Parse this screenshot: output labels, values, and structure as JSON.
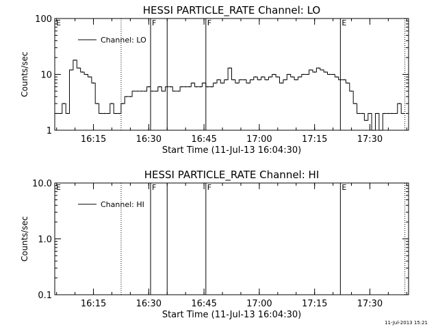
{
  "chart_data": [
    {
      "type": "line",
      "title": "HESSI PARTICLE_RATE Channel: LO",
      "xlabel": "Start Time (11-Jul-13 16:04:30)",
      "ylabel": "Counts/sec",
      "y_scale": "log",
      "ylim": [
        1,
        100
      ],
      "y_ticks": [
        1,
        10,
        100
      ],
      "y_tick_labels": [
        "1",
        "10",
        "100"
      ],
      "xlim": [
        "16:04:30",
        "17:40:30"
      ],
      "x_ticks": [
        "16:15",
        "16:30",
        "16:45",
        "17:00",
        "17:15",
        "17:30"
      ],
      "legend": {
        "position": "top-left",
        "entries": [
          "Channel: LO"
        ]
      },
      "series": [
        {
          "name": "Channel: LO",
          "x": [
            "16:05",
            "16:06",
            "16:07",
            "16:08",
            "16:09",
            "16:10",
            "16:11",
            "16:12",
            "16:13",
            "16:14",
            "16:15",
            "16:16",
            "16:17",
            "16:18",
            "16:19",
            "16:20",
            "16:21",
            "16:22",
            "16:23",
            "16:24",
            "16:25",
            "16:26",
            "16:27",
            "16:28",
            "16:29",
            "16:30",
            "16:31",
            "16:32",
            "16:33",
            "16:34",
            "16:35",
            "16:36",
            "16:37",
            "16:38",
            "16:39",
            "16:40",
            "16:41",
            "16:42",
            "16:43",
            "16:44",
            "16:45",
            "16:46",
            "16:47",
            "16:48",
            "16:49",
            "16:50",
            "16:51",
            "16:52",
            "16:53",
            "16:54",
            "16:55",
            "16:56",
            "16:57",
            "16:58",
            "16:59",
            "17:00",
            "17:01",
            "17:02",
            "17:03",
            "17:04",
            "17:05",
            "17:06",
            "17:07",
            "17:08",
            "17:09",
            "17:10",
            "17:11",
            "17:12",
            "17:13",
            "17:14",
            "17:15",
            "17:16",
            "17:17",
            "17:18",
            "17:19",
            "17:20",
            "17:21",
            "17:22",
            "17:23",
            "17:24",
            "17:25",
            "17:26",
            "17:27",
            "17:28",
            "17:29",
            "17:30",
            "17:31",
            "17:32",
            "17:33",
            "17:34",
            "17:35",
            "17:36",
            "17:37",
            "17:38",
            "17:39"
          ],
          "values": [
            2,
            2,
            3,
            2,
            12,
            18,
            13,
            11,
            10,
            9,
            7,
            3,
            2,
            2,
            2,
            3,
            2,
            2,
            3,
            4,
            4,
            5,
            5,
            5,
            5,
            6,
            5,
            5,
            6,
            5,
            6,
            6,
            5,
            5,
            6,
            6,
            6,
            7,
            6,
            6,
            7,
            6,
            6,
            7,
            8,
            7,
            8,
            13,
            8,
            7,
            8,
            8,
            7,
            8,
            9,
            8,
            9,
            8,
            9,
            10,
            9,
            7,
            8,
            10,
            9,
            8,
            9,
            10,
            10,
            12,
            11,
            13,
            12,
            11,
            10,
            10,
            9,
            8,
            8,
            7,
            5,
            3,
            2,
            2,
            1.5,
            2,
            1,
            2,
            1,
            2,
            2,
            2,
            2,
            3,
            2
          ]
        }
      ],
      "annotations": [
        {
          "label": "E",
          "x": "16:04:30",
          "line": "none"
        },
        {
          "label": "",
          "x": "16:22:30",
          "line": "dotted"
        },
        {
          "label": "F",
          "x": "16:30:30",
          "line": "solid"
        },
        {
          "label": "",
          "x": "16:35:00",
          "line": "solid"
        },
        {
          "label": "F",
          "x": "16:45:30",
          "line": "solid"
        },
        {
          "label": "E",
          "x": "17:22:00",
          "line": "solid"
        },
        {
          "label": "",
          "x": "17:39:30",
          "line": "dotted"
        }
      ],
      "grid": false
    },
    {
      "type": "line",
      "title": "HESSI PARTICLE_RATE Channel: HI",
      "xlabel": "Start Time (11-Jul-13 16:04:30)",
      "ylabel": "Counts/sec",
      "y_scale": "log",
      "ylim": [
        0.1,
        10
      ],
      "y_ticks": [
        0.1,
        1,
        10
      ],
      "y_tick_labels": [
        "0.1",
        "1.0",
        "10.0"
      ],
      "xlim": [
        "16:04:30",
        "17:40:30"
      ],
      "x_ticks": [
        "16:15",
        "16:30",
        "16:45",
        "17:00",
        "17:15",
        "17:30"
      ],
      "legend": {
        "position": "top-left",
        "entries": [
          "Channel: HI"
        ]
      },
      "series": [
        {
          "name": "Channel: HI",
          "x": [],
          "values": []
        }
      ],
      "annotations": [
        {
          "label": "E",
          "x": "16:04:30",
          "line": "none"
        },
        {
          "label": "",
          "x": "16:22:30",
          "line": "dotted"
        },
        {
          "label": "F",
          "x": "16:30:30",
          "line": "solid"
        },
        {
          "label": "",
          "x": "16:35:00",
          "line": "solid"
        },
        {
          "label": "F",
          "x": "16:45:30",
          "line": "solid"
        },
        {
          "label": "E",
          "x": "17:22:00",
          "line": "solid"
        },
        {
          "label": "",
          "x": "17:39:30",
          "line": "dotted"
        }
      ],
      "grid": false
    }
  ],
  "footer": {
    "timestamp": "11-Jul-2013 15:21"
  },
  "colors": {
    "line": "#000000",
    "background": "#ffffff"
  }
}
